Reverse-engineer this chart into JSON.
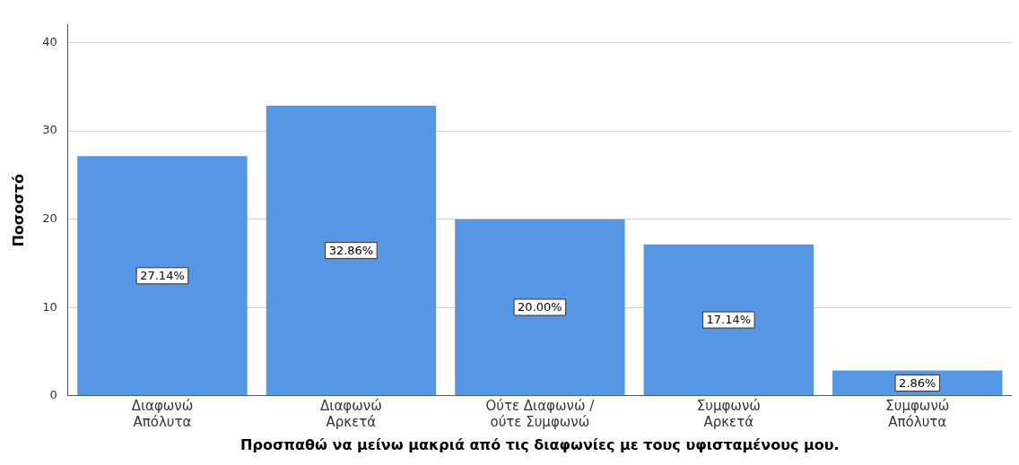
{
  "chart_data": {
    "type": "bar",
    "categories": [
      "Διαφωνώ\nΑπόλυτα",
      "Διαφωνώ\nΑρκετά",
      "Ούτε Διαφωνώ /\nούτε Συμφωνώ",
      "Συμφωνώ\nΑρκετά",
      "Συμφωνώ\nΑπόλυτα"
    ],
    "values": [
      27.14,
      32.86,
      20.0,
      17.14,
      2.86
    ],
    "value_labels": [
      "27.14%",
      "32.86%",
      "20.00%",
      "17.14%",
      "2.86%"
    ],
    "color": "#5596e5",
    "xlabel": "Προσπαθώ να μείνω μακριά από τις διαφωνίες με τους υφισταμένους μου.",
    "ylabel": "Ποσοστό",
    "ylim": [
      0,
      42
    ],
    "yticks": [
      0,
      10,
      20,
      30,
      40
    ],
    "grid": "y"
  }
}
